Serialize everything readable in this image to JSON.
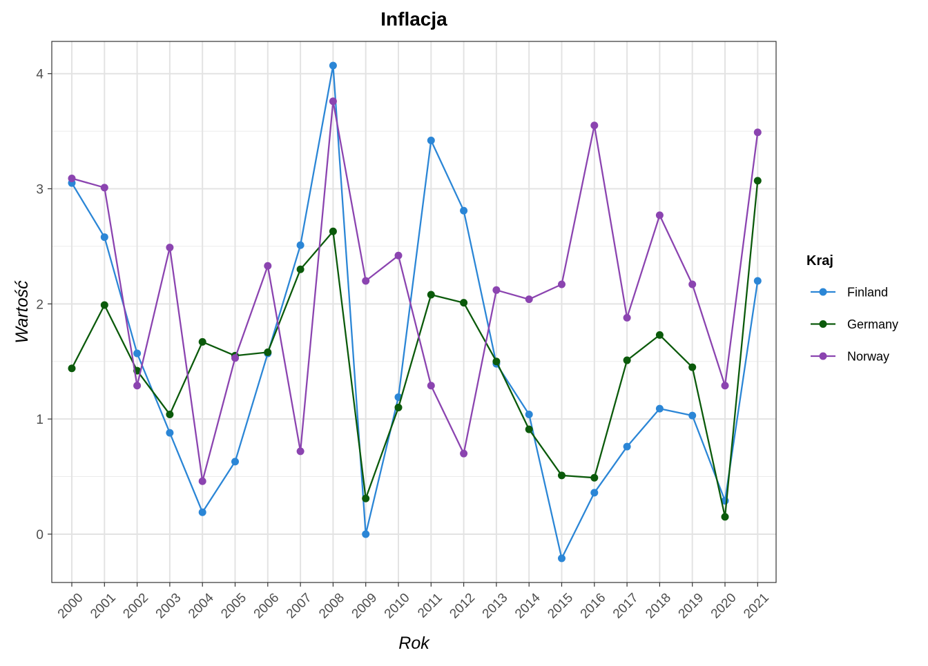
{
  "chart_data": {
    "type": "line",
    "title": "Inflacja",
    "xlabel": "Rok",
    "ylabel": "Wartość",
    "x": [
      "2000",
      "2001",
      "2002",
      "2003",
      "2004",
      "2005",
      "2006",
      "2007",
      "2008",
      "2009",
      "2010",
      "2011",
      "2012",
      "2013",
      "2014",
      "2015",
      "2016",
      "2017",
      "2018",
      "2019",
      "2020",
      "2021"
    ],
    "yticks": [
      0,
      1,
      2,
      3,
      4
    ],
    "ylim": [
      -0.42,
      4.28
    ],
    "grid": true,
    "legend": {
      "title": "Kraj",
      "placement": "right"
    },
    "series": [
      {
        "name": "Finland",
        "color": "#2b86d6",
        "values": [
          3.05,
          2.58,
          1.57,
          0.88,
          0.19,
          0.63,
          1.57,
          2.51,
          4.07,
          0.0,
          1.19,
          3.42,
          2.81,
          1.48,
          1.04,
          -0.21,
          0.36,
          0.76,
          1.09,
          1.03,
          0.29,
          2.2
        ]
      },
      {
        "name": "Germany",
        "color": "#0b5a0b",
        "values": [
          1.44,
          1.99,
          1.42,
          1.04,
          1.67,
          1.55,
          1.58,
          2.3,
          2.63,
          0.31,
          1.1,
          2.08,
          2.01,
          1.5,
          0.91,
          0.51,
          0.49,
          1.51,
          1.73,
          1.45,
          0.15,
          3.07
        ]
      },
      {
        "name": "Norway",
        "color": "#8b44b0",
        "values": [
          3.09,
          3.01,
          1.29,
          2.49,
          0.46,
          1.53,
          2.33,
          0.72,
          3.76,
          2.2,
          2.42,
          1.29,
          0.7,
          2.12,
          2.04,
          2.17,
          3.55,
          1.88,
          2.77,
          2.17,
          1.29,
          3.49
        ]
      }
    ]
  }
}
